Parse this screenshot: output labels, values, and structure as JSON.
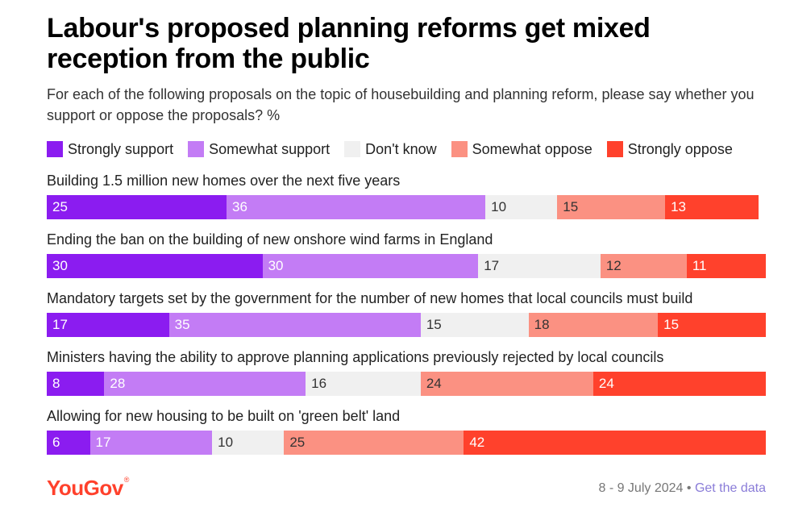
{
  "title": "Labour's proposed planning reforms get mixed reception from the public",
  "subtitle": "For each of the following proposals on the topic of housebuilding and planning reform, please say whether you support or oppose the proposals? %",
  "brand": {
    "logo_text": "YouGov",
    "logo_mark": "®"
  },
  "footer": {
    "date": "8 - 9 July 2024",
    "separator": "•",
    "link": "Get the data"
  },
  "colors": {
    "strongly_support": "#8b1cf0",
    "somewhat_support": "#c37cf5",
    "dont_know": "#f0f0f0",
    "somewhat_oppose": "#fb9182",
    "strongly_oppose": "#ff412c",
    "logo": "#ff412c",
    "link": "#8a7cd8"
  },
  "chart_data": {
    "type": "bar",
    "orientation": "horizontal",
    "stacked": true,
    "legend_position": "top",
    "categories": [
      "Building 1.5 million new homes over the next five years",
      "Ending the ban on the building of new onshore wind farms in England",
      "Mandatory targets set by the government for the number of new homes that local councils must build",
      "Ministers having the ability to approve planning applications previously rejected by local councils",
      "Allowing for new housing to be built on 'green belt' land"
    ],
    "series": [
      {
        "name": "Strongly support",
        "values": [
          25,
          30,
          17,
          8,
          6
        ]
      },
      {
        "name": "Somewhat support",
        "values": [
          36,
          30,
          35,
          28,
          17
        ]
      },
      {
        "name": "Don't know",
        "values": [
          10,
          17,
          15,
          16,
          10
        ]
      },
      {
        "name": "Somewhat oppose",
        "values": [
          15,
          12,
          18,
          24,
          25
        ]
      },
      {
        "name": "Strongly oppose",
        "values": [
          13,
          11,
          15,
          24,
          42
        ]
      }
    ]
  }
}
